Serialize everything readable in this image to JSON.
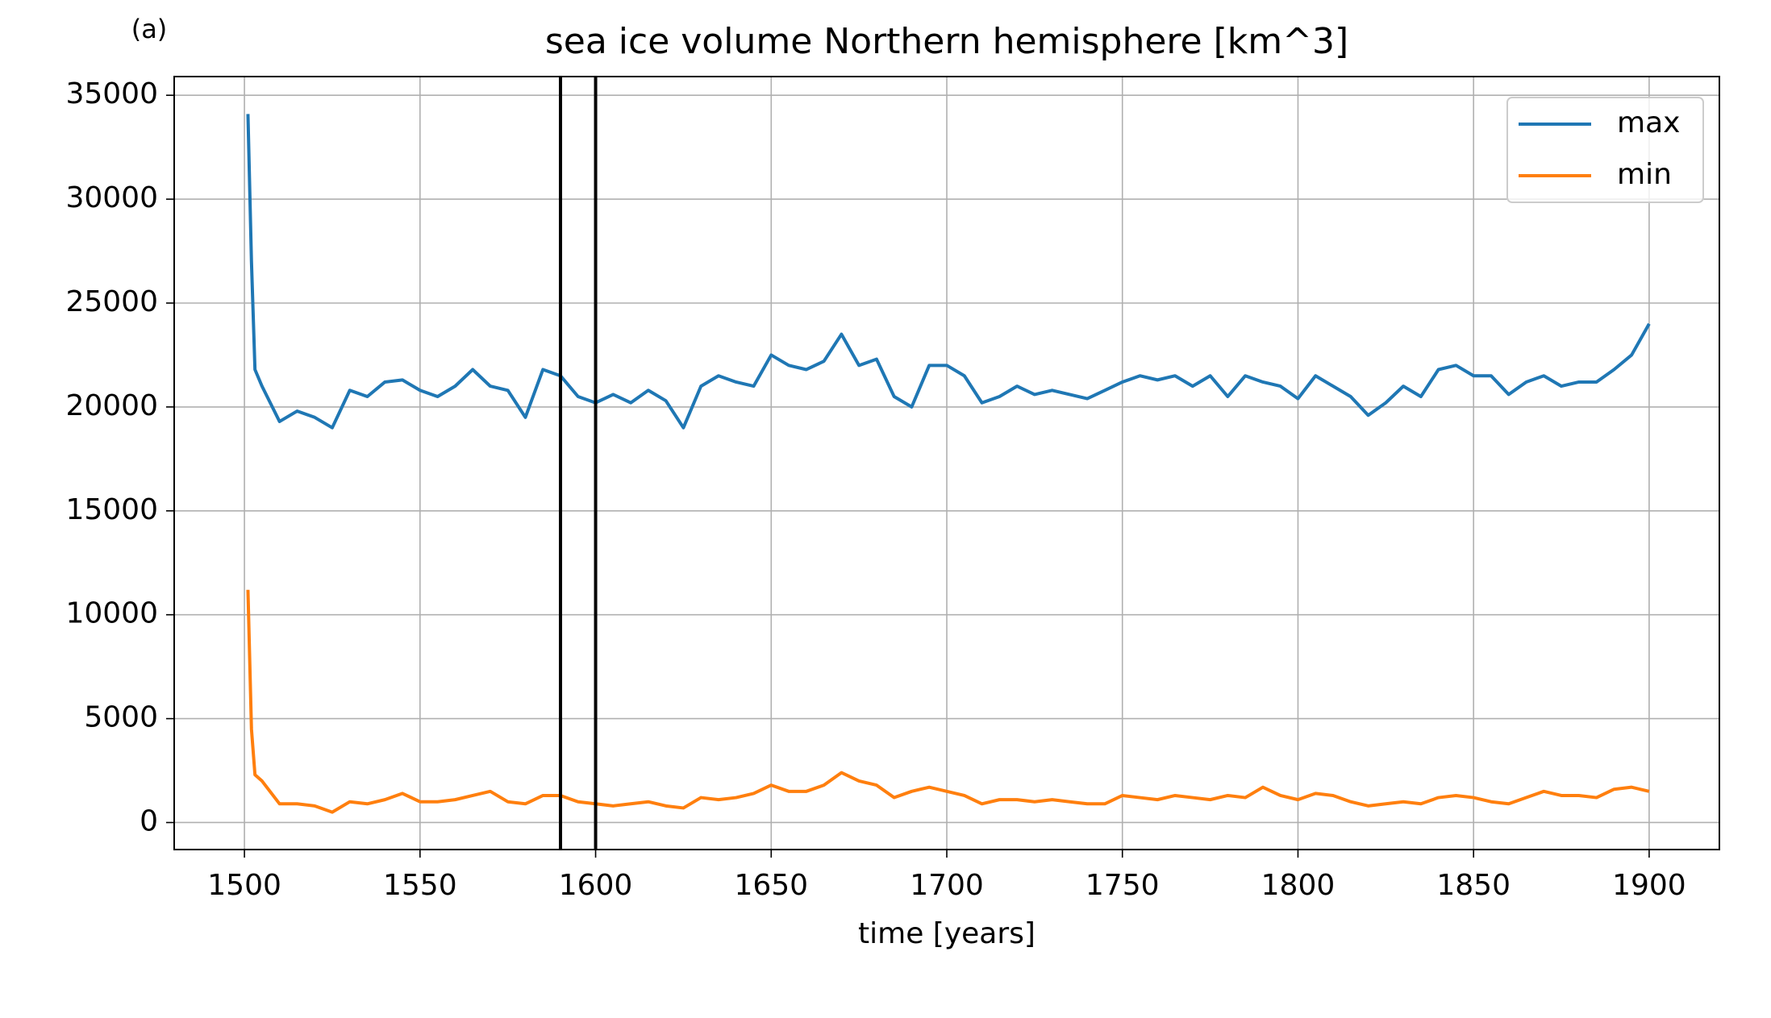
{
  "chart_data": {
    "type": "line",
    "panel_label": "(a)",
    "title": "sea ice volume Northern hemisphere [km^3]",
    "xlabel": "time [years]",
    "x": [
      1501,
      1502,
      1503,
      1505,
      1510,
      1515,
      1520,
      1525,
      1530,
      1535,
      1540,
      1545,
      1550,
      1555,
      1560,
      1565,
      1570,
      1575,
      1580,
      1585,
      1590,
      1595,
      1600,
      1605,
      1610,
      1615,
      1620,
      1625,
      1630,
      1635,
      1640,
      1645,
      1650,
      1655,
      1660,
      1665,
      1670,
      1675,
      1680,
      1685,
      1690,
      1695,
      1700,
      1705,
      1710,
      1715,
      1720,
      1725,
      1730,
      1735,
      1740,
      1745,
      1750,
      1755,
      1760,
      1765,
      1770,
      1775,
      1780,
      1785,
      1790,
      1795,
      1800,
      1805,
      1810,
      1815,
      1820,
      1825,
      1830,
      1835,
      1840,
      1845,
      1850,
      1855,
      1860,
      1865,
      1870,
      1875,
      1880,
      1885,
      1890,
      1895,
      1900
    ],
    "series": [
      {
        "name": "max",
        "color": "#1f77b4",
        "values": [
          34100,
          27000,
          21800,
          21000,
          19300,
          19800,
          19500,
          19000,
          20800,
          20500,
          21200,
          21300,
          20800,
          20500,
          21000,
          21800,
          21000,
          20800,
          19500,
          21800,
          21500,
          20500,
          20200,
          20600,
          20200,
          20800,
          20300,
          19000,
          21000,
          21500,
          21200,
          21000,
          22500,
          22000,
          21800,
          22200,
          23500,
          22000,
          22300,
          20500,
          20000,
          22000,
          22000,
          21500,
          20200,
          20500,
          21000,
          20600,
          20800,
          20600,
          20400,
          20800,
          21200,
          21500,
          21300,
          21500,
          21000,
          21500,
          20500,
          21500,
          21200,
          21000,
          20400,
          21500,
          21000,
          20500,
          19600,
          20200,
          21000,
          20500,
          21800,
          22000,
          21500,
          21500,
          20600,
          21200,
          21500,
          21000,
          21200,
          21200,
          21800,
          22500,
          24000
        ]
      },
      {
        "name": "min",
        "color": "#ff7f0e",
        "values": [
          11200,
          4500,
          2300,
          2000,
          900,
          900,
          800,
          500,
          1000,
          900,
          1100,
          1400,
          1000,
          1000,
          1100,
          1300,
          1500,
          1000,
          900,
          1300,
          1300,
          1000,
          900,
          800,
          900,
          1000,
          800,
          700,
          1200,
          1100,
          1200,
          1400,
          1800,
          1500,
          1500,
          1800,
          2400,
          2000,
          1800,
          1200,
          1500,
          1700,
          1500,
          1300,
          900,
          1100,
          1100,
          1000,
          1100,
          1000,
          900,
          900,
          1300,
          1200,
          1100,
          1300,
          1200,
          1100,
          1300,
          1200,
          1700,
          1300,
          1100,
          1400,
          1300,
          1000,
          800,
          900,
          1000,
          900,
          1200,
          1300,
          1200,
          1000,
          900,
          1200,
          1500,
          1300,
          1300,
          1200,
          1600,
          1700,
          1500
        ]
      }
    ],
    "vlines": [
      1590,
      1600
    ],
    "vline_color": "#000000",
    "xlim": [
      1480,
      1920
    ],
    "ylim": [
      -1300,
      35900
    ],
    "xticks": [
      1500,
      1550,
      1600,
      1650,
      1700,
      1750,
      1800,
      1850,
      1900
    ],
    "yticks": [
      0,
      5000,
      10000,
      15000,
      20000,
      25000,
      30000,
      35000
    ],
    "grid": true,
    "legend": "upper right"
  }
}
